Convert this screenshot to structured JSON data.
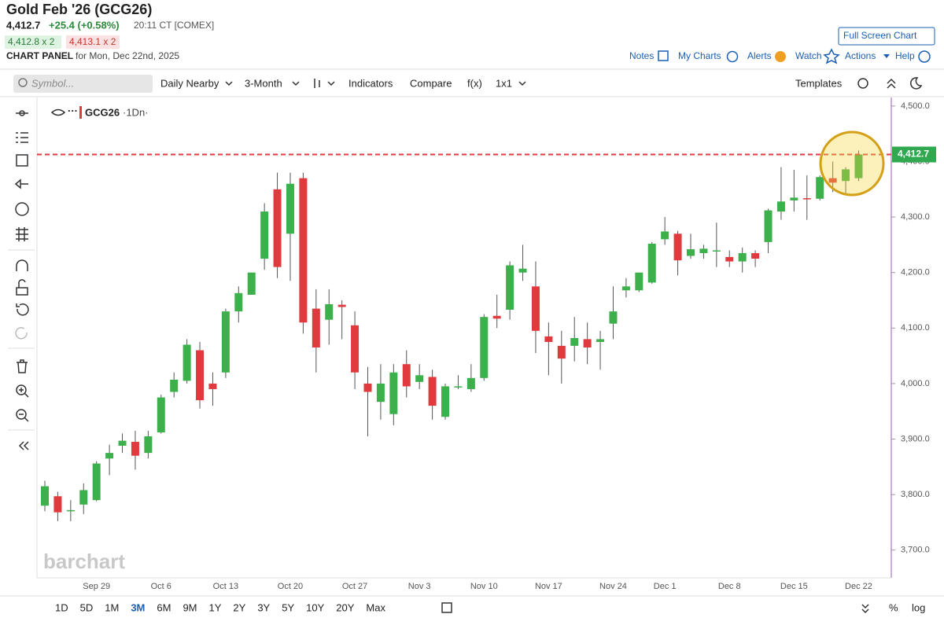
{
  "header": {
    "title": "Gold Feb '26 (GCG26)",
    "last": "4,412.7",
    "change": "+25.4 (+0.58%)",
    "time": "20:11 CT [COMEX]",
    "bid": "4,412.8 x 2",
    "ask": "4,413.1 x 2",
    "panel": "CHART PANEL",
    "date": "for Mon, Dec 22nd, 2025"
  },
  "nav": {
    "full_screen": "Full Screen Chart",
    "notes": "Notes",
    "my_charts": "My Charts",
    "alerts": "Alerts",
    "watch": "Watch",
    "actions": "Actions",
    "help": "Help"
  },
  "toolbar": {
    "symbol_placeholder": "Symbol...",
    "period": "Daily Nearby",
    "range": "3-Month",
    "indicators": "Indicators",
    "compare": "Compare",
    "fx": "f(x)",
    "layout": "1x1",
    "templates": "Templates"
  },
  "chart_data": {
    "type": "candlestick",
    "symbol": "GCG26",
    "interval": "·1Dn·",
    "watermark": "barchart",
    "categories": [
      null,
      null,
      null,
      null,
      "Sep 29",
      null,
      null,
      null,
      null,
      "Oct 6",
      null,
      null,
      null,
      null,
      "Oct 13",
      null,
      null,
      null,
      null,
      "Oct 20",
      null,
      null,
      null,
      null,
      "Oct 27",
      null,
      null,
      null,
      null,
      "Nov 3",
      null,
      null,
      null,
      null,
      "Nov 10",
      null,
      null,
      null,
      null,
      "Nov 17",
      null,
      null,
      null,
      null,
      "Nov 24",
      null,
      null,
      null,
      "Dec 1",
      null,
      null,
      null,
      null,
      "Dec 8",
      null,
      null,
      null,
      null,
      "Dec 15",
      null,
      null,
      null,
      null,
      "Dec 22"
    ],
    "open": [
      3780,
      3797,
      3770,
      3782,
      3790,
      3865,
      3888,
      3895,
      3875,
      3912,
      3985,
      4005,
      4060,
      4000,
      4020,
      4130,
      4160,
      4225,
      4350,
      4270,
      4370,
      4135,
      4115,
      4142,
      4105,
      4000,
      3967,
      3945,
      4035,
      4003,
      4012,
      3940,
      3995,
      3990,
      4010,
      4122,
      4133,
      4200,
      4175,
      4085,
      4068,
      4068,
      4080,
      4075,
      4108,
      4168,
      4168,
      4182,
      4260,
      4270,
      4230,
      4235,
      4240,
      4228,
      4220,
      4235,
      4255,
      4310,
      4330,
      4334,
      4333,
      4370,
      4365,
      4370
    ],
    "high": [
      3825,
      3805,
      3790,
      3820,
      3860,
      3890,
      3910,
      3915,
      3915,
      3980,
      4020,
      4080,
      4075,
      4020,
      4135,
      4175,
      4200,
      4325,
      4380,
      4380,
      4380,
      4170,
      4170,
      4150,
      4130,
      4030,
      4035,
      4035,
      4060,
      4035,
      4025,
      4000,
      4015,
      4035,
      4125,
      4160,
      4220,
      4250,
      4220,
      4110,
      4095,
      4120,
      4110,
      4095,
      4175,
      4190,
      4200,
      4255,
      4300,
      4275,
      4270,
      4250,
      4290,
      4240,
      4245,
      4240,
      4315,
      4390,
      4385,
      4375,
      4375,
      4400,
      4390,
      4420
    ],
    "low": [
      3770,
      3752,
      3752,
      3765,
      3788,
      3835,
      3875,
      3845,
      3865,
      3910,
      3975,
      4000,
      3955,
      3960,
      4010,
      4110,
      4160,
      4205,
      4190,
      4185,
      4090,
      4020,
      4070,
      4080,
      3990,
      3905,
      3935,
      3925,
      3975,
      3990,
      3935,
      3935,
      3990,
      3985,
      4005,
      4100,
      4115,
      4185,
      4055,
      4015,
      4000,
      4040,
      4035,
      4025,
      4080,
      4155,
      4165,
      4180,
      4250,
      4195,
      4225,
      4225,
      4210,
      4210,
      4200,
      4210,
      4235,
      4295,
      4310,
      4295,
      4330,
      4345,
      4340,
      4365
    ],
    "close": [
      3815,
      3768,
      3772,
      3808,
      3856,
      3875,
      3897,
      3870,
      3905,
      3975,
      4007,
      4070,
      3970,
      3990,
      4130,
      4163,
      4200,
      4310,
      4210,
      4360,
      4110,
      4065,
      4143,
      4138,
      4020,
      3985,
      4000,
      4020,
      3995,
      4015,
      3960,
      3995,
      3995,
      4010,
      4120,
      4117,
      4213,
      4207,
      4095,
      4075,
      4045,
      4082,
      4065,
      4080,
      4130,
      4175,
      4200,
      4252,
      4274,
      4222,
      4242,
      4243,
      4240,
      4220,
      4235,
      4225,
      4312,
      4328,
      4335,
      4332,
      4372,
      4362,
      4386,
      4412.7
    ],
    "up_color": "#3cb04b",
    "down_color": "#e03a3e",
    "ylim": [
      3650,
      4514
    ],
    "yticks": [
      {
        "value": 3700,
        "label": "3,700.0"
      },
      {
        "value": 3800,
        "label": "3,800.0"
      },
      {
        "value": 3900,
        "label": "3,900.0"
      },
      {
        "value": 4000,
        "label": "4,000.0"
      },
      {
        "value": 4100,
        "label": "4,100.0"
      },
      {
        "value": 4200,
        "label": "4,200.0"
      },
      {
        "value": 4300,
        "label": "4,300.0"
      },
      {
        "value": 4400,
        "label": "4,400.0"
      },
      {
        "value": 4500,
        "label": "4,500.0"
      }
    ],
    "last_price": {
      "value": 4412.7,
      "label": "4,412.7"
    },
    "last_line_color": "#e03a3e",
    "last_label_color": "#2fa84f"
  },
  "range_bar": {
    "buttons": [
      "1D",
      "5D",
      "1M",
      "3M",
      "6M",
      "9M",
      "1Y",
      "2Y",
      "3Y",
      "5Y",
      "10Y",
      "20Y",
      "Max"
    ],
    "percent": "%",
    "log": "log"
  }
}
